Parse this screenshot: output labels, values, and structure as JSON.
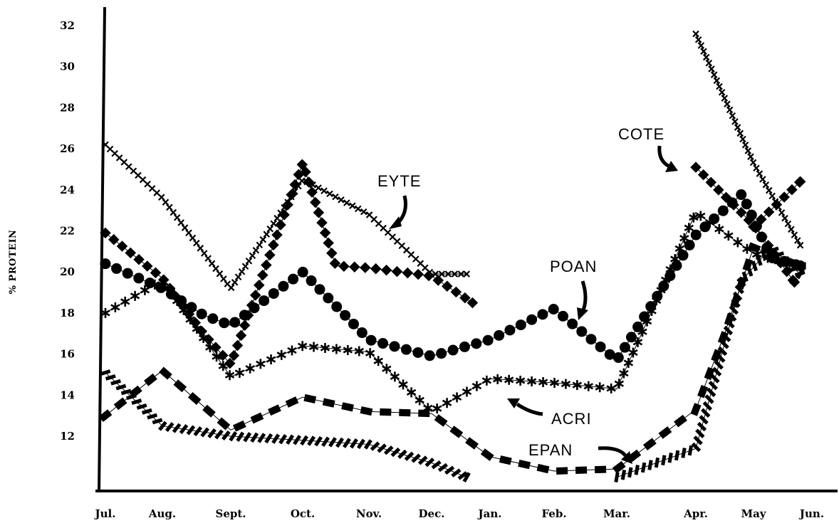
{
  "chart_data": {
    "type": "line",
    "title": "",
    "xlabel": "",
    "ylabel": "% PROTEIN",
    "x": [
      "Jul.",
      "Aug.",
      "Sept.",
      "Oct.",
      "Nov.",
      "Dec.",
      "Jan.",
      "Feb.",
      "Mar.",
      "Apr.",
      "May",
      "Jun."
    ],
    "y_ticks": [
      12,
      14,
      16,
      18,
      20,
      22,
      24,
      26,
      28,
      30,
      32
    ],
    "ylim": [
      10,
      33
    ],
    "grid": false,
    "legend": "none",
    "series": [
      {
        "name": "EYTE",
        "marker": "x",
        "points": [
          [
            0,
            26.2
          ],
          [
            1,
            23.6
          ],
          [
            2,
            19.2
          ],
          [
            3,
            24.5
          ],
          [
            4,
            22.8
          ],
          [
            5,
            19.9
          ],
          [
            5.6,
            19.9
          ]
        ]
      },
      {
        "name": "COTE",
        "marker": "diamond",
        "points": [
          [
            0,
            21.9
          ],
          [
            1,
            19.7
          ],
          [
            1.6,
            17.0
          ],
          [
            2,
            15.5
          ],
          [
            3,
            25.3
          ],
          [
            3.5,
            20.3
          ],
          [
            4,
            20.2
          ],
          [
            5,
            19.8
          ],
          [
            5.7,
            18.5
          ]
        ],
        "points_2": [
          [
            9.0,
            25.1
          ],
          [
            10.0,
            22.3
          ],
          [
            10.7,
            19.5
          ]
        ]
      },
      {
        "name": "POAN",
        "marker": "circle",
        "points": [
          [
            0,
            20.4
          ],
          [
            1,
            19.2
          ],
          [
            1.6,
            17.9
          ],
          [
            2,
            17.4
          ],
          [
            3,
            20.0
          ],
          [
            4,
            16.7
          ],
          [
            5,
            15.9
          ],
          [
            6,
            16.7
          ],
          [
            7,
            18.2
          ],
          [
            8,
            15.7
          ],
          [
            9,
            21.8
          ],
          [
            9.8,
            23.8
          ],
          [
            10.3,
            20.7
          ],
          [
            10.8,
            20.3
          ]
        ]
      },
      {
        "name": "ACRI",
        "marker": "asterisk",
        "points": [
          [
            0,
            18.0
          ],
          [
            1,
            19.6
          ],
          [
            2,
            14.9
          ],
          [
            3,
            16.4
          ],
          [
            4,
            16.1
          ],
          [
            5,
            13.2
          ],
          [
            6,
            14.8
          ],
          [
            7,
            14.6
          ],
          [
            8,
            14.3
          ],
          [
            9,
            22.9
          ],
          [
            10,
            20.9
          ],
          [
            10.8,
            20.2
          ]
        ]
      },
      {
        "name": "EPAN",
        "marker": "dash",
        "points": [
          [
            0,
            13.0
          ],
          [
            1,
            15.2
          ],
          [
            2,
            12.3
          ],
          [
            3,
            13.9
          ],
          [
            4,
            13.2
          ],
          [
            5,
            13.1
          ],
          [
            6,
            11.0
          ],
          [
            7,
            10.3
          ],
          [
            8,
            10.4
          ],
          [
            9,
            13.3
          ],
          [
            9.5,
            17.0
          ],
          [
            10,
            21.2
          ],
          [
            10.8,
            20.3
          ]
        ]
      },
      {
        "name": "",
        "marker": "slash",
        "points": [
          [
            0,
            15.1
          ],
          [
            1,
            12.5
          ],
          [
            2,
            12.0
          ],
          [
            3,
            11.8
          ],
          [
            4,
            11.6
          ],
          [
            5,
            10.7
          ],
          [
            5.6,
            10.0
          ]
        ],
        "points_2": [
          [
            8.0,
            10.0
          ],
          [
            9.0,
            11.4
          ],
          [
            9.8,
            19.6
          ],
          [
            10.3,
            21.2
          ],
          [
            10.8,
            19.9
          ]
        ]
      },
      {
        "name": "",
        "marker": "x",
        "points": [
          [
            9.0,
            31.6
          ],
          [
            10.0,
            25.3
          ],
          [
            10.8,
            21.3
          ]
        ]
      },
      {
        "name": "",
        "marker": "diamond",
        "points": [
          [
            10.0,
            22.2
          ],
          [
            10.4,
            23.3
          ],
          [
            10.8,
            24.4
          ]
        ]
      }
    ],
    "annotations": [
      {
        "text": "EYTE"
      },
      {
        "text": "COTE"
      },
      {
        "text": "POAN"
      },
      {
        "text": "ACRI"
      },
      {
        "text": "EPAN"
      }
    ]
  }
}
